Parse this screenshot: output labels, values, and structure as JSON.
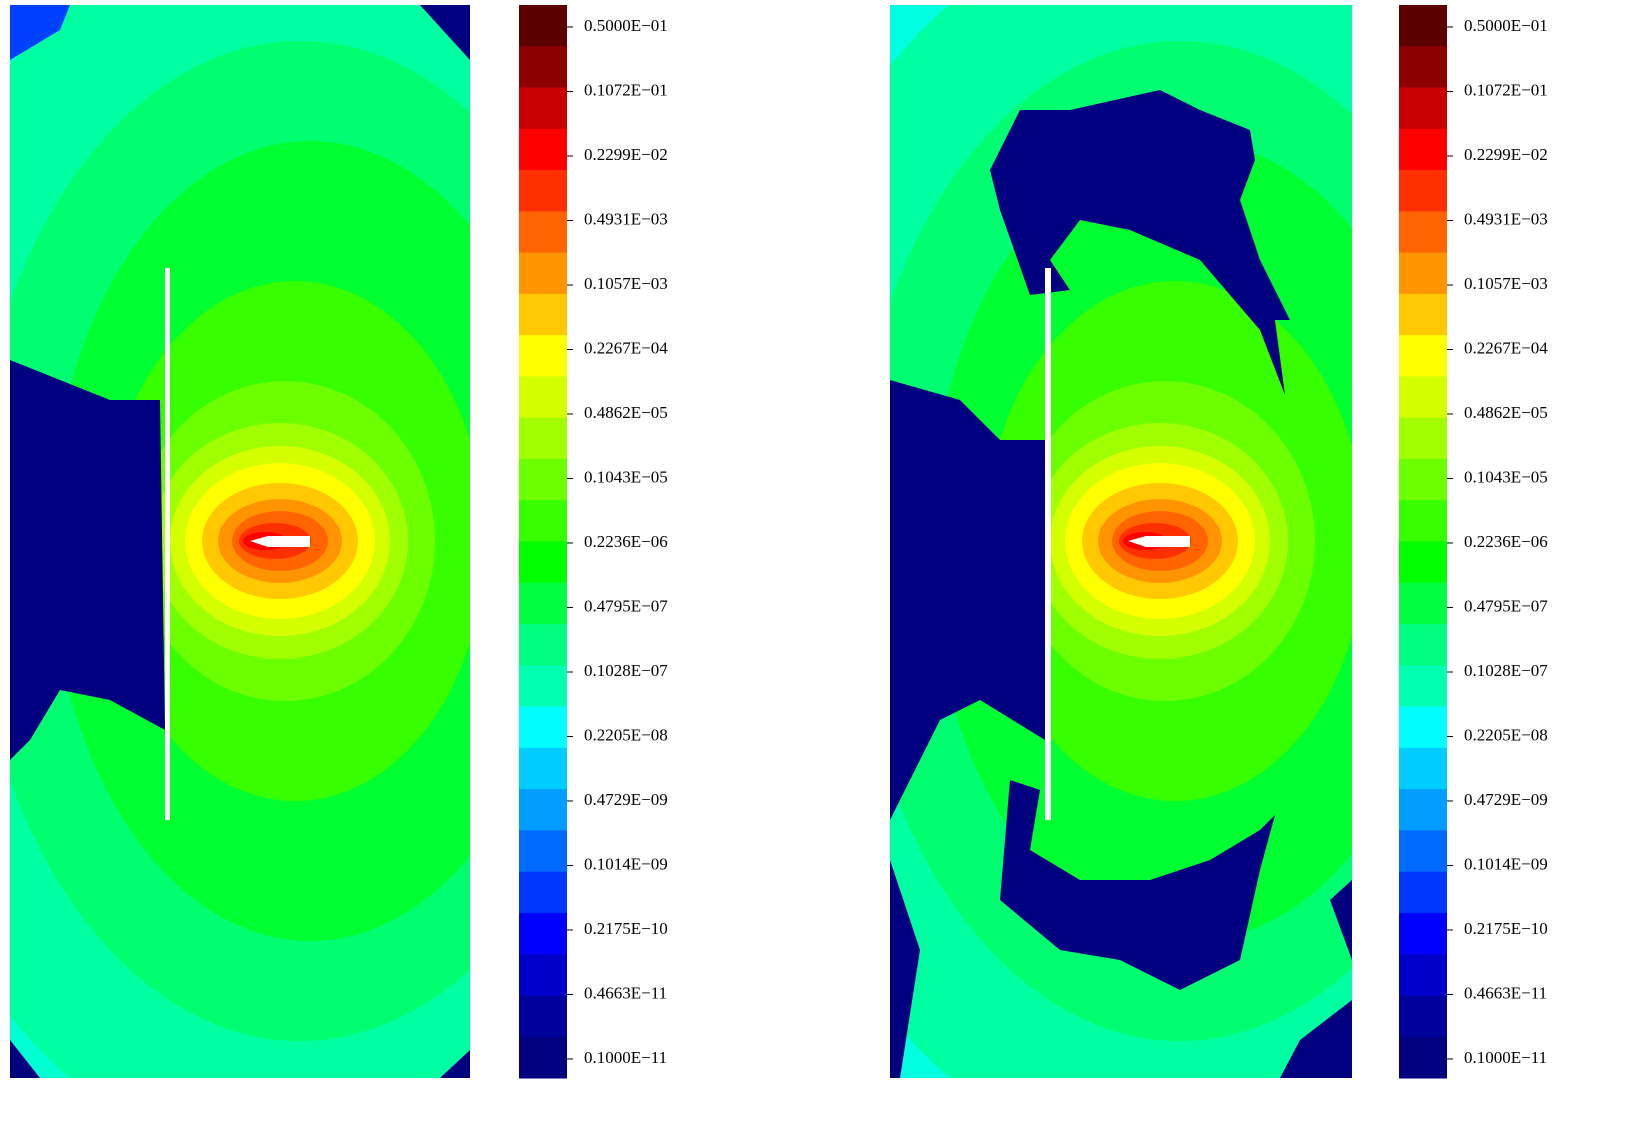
{
  "chart_data": [
    {
      "type": "contour",
      "colorbar": {
        "scale": "log",
        "ylim": [
          6.35e-13,
          0.0845
        ],
        "yticks": [
          {
            "value": 0.05,
            "label": "0.5000E−01"
          },
          {
            "value": 0.01072,
            "label": "0.1072E−01"
          },
          {
            "value": 0.002299,
            "label": "0.2299E−02"
          },
          {
            "value": 0.0004931,
            "label": "0.4931E−03"
          },
          {
            "value": 0.0001057,
            "label": "0.1057E−03"
          },
          {
            "value": 2.267e-05,
            "label": "0.2267E−04"
          },
          {
            "value": 4.862e-06,
            "label": "0.4862E−05"
          },
          {
            "value": 1.043e-06,
            "label": "0.1043E−05"
          },
          {
            "value": 2.236e-07,
            "label": "0.2236E−06"
          },
          {
            "value": 4.795e-08,
            "label": "0.4795E−07"
          },
          {
            "value": 1.028e-08,
            "label": "0.1028E−07"
          },
          {
            "value": 2.205e-09,
            "label": "0.2205E−08"
          },
          {
            "value": 4.729e-10,
            "label": "0.4729E−09"
          },
          {
            "value": 1.014e-10,
            "label": "0.1014E−09"
          },
          {
            "value": 2.175e-11,
            "label": "0.2175E−10"
          },
          {
            "value": 4.663e-12,
            "label": "0.4663E−11"
          },
          {
            "value": 1e-12,
            "label": "0.1000E−11"
          }
        ],
        "colors": [
          "#5c0000",
          "#8c0000",
          "#c80000",
          "#ff0000",
          "#ff3000",
          "#ff6400",
          "#ff9400",
          "#ffc800",
          "#ffff00",
          "#d4ff00",
          "#a0ff00",
          "#6cff00",
          "#38ff00",
          "#00ff00",
          "#00ff40",
          "#00ff80",
          "#00ffb0",
          "#00ffff",
          "#00ccff",
          "#009cff",
          "#006cff",
          "#0038ff",
          "#0000ff",
          "#0000cc",
          "#00009c",
          "#000080"
        ]
      }
    },
    {
      "type": "contour",
      "colorbar": {
        "scale": "log",
        "ylim": [
          6.35e-13,
          0.0845
        ],
        "yticks": [
          {
            "value": 0.05,
            "label": "0.5000E−01"
          },
          {
            "value": 0.01072,
            "label": "0.1072E−01"
          },
          {
            "value": 0.002299,
            "label": "0.2299E−02"
          },
          {
            "value": 0.0004931,
            "label": "0.4931E−03"
          },
          {
            "value": 0.0001057,
            "label": "0.1057E−03"
          },
          {
            "value": 2.267e-05,
            "label": "0.2267E−04"
          },
          {
            "value": 4.862e-06,
            "label": "0.4862E−05"
          },
          {
            "value": 1.043e-06,
            "label": "0.1043E−05"
          },
          {
            "value": 2.236e-07,
            "label": "0.2236E−06"
          },
          {
            "value": 4.795e-08,
            "label": "0.4795E−07"
          },
          {
            "value": 1.028e-08,
            "label": "0.1028E−07"
          },
          {
            "value": 2.205e-09,
            "label": "0.2205E−08"
          },
          {
            "value": 4.729e-10,
            "label": "0.4729E−09"
          },
          {
            "value": 1.014e-10,
            "label": "0.1014E−09"
          },
          {
            "value": 2.175e-11,
            "label": "0.2175E−10"
          },
          {
            "value": 4.663e-12,
            "label": "0.4663E−11"
          },
          {
            "value": 1e-12,
            "label": "0.1000E−11"
          }
        ],
        "colors": [
          "#5c0000",
          "#8c0000",
          "#c80000",
          "#ff0000",
          "#ff3000",
          "#ff6400",
          "#ff9400",
          "#ffc800",
          "#ffff00",
          "#d4ff00",
          "#a0ff00",
          "#6cff00",
          "#38ff00",
          "#00ff00",
          "#00ff40",
          "#00ff80",
          "#00ffb0",
          "#00ffff",
          "#00ccff",
          "#009cff",
          "#006cff",
          "#0038ff",
          "#0000ff",
          "#0000cc",
          "#00009c",
          "#000080"
        ]
      }
    }
  ]
}
